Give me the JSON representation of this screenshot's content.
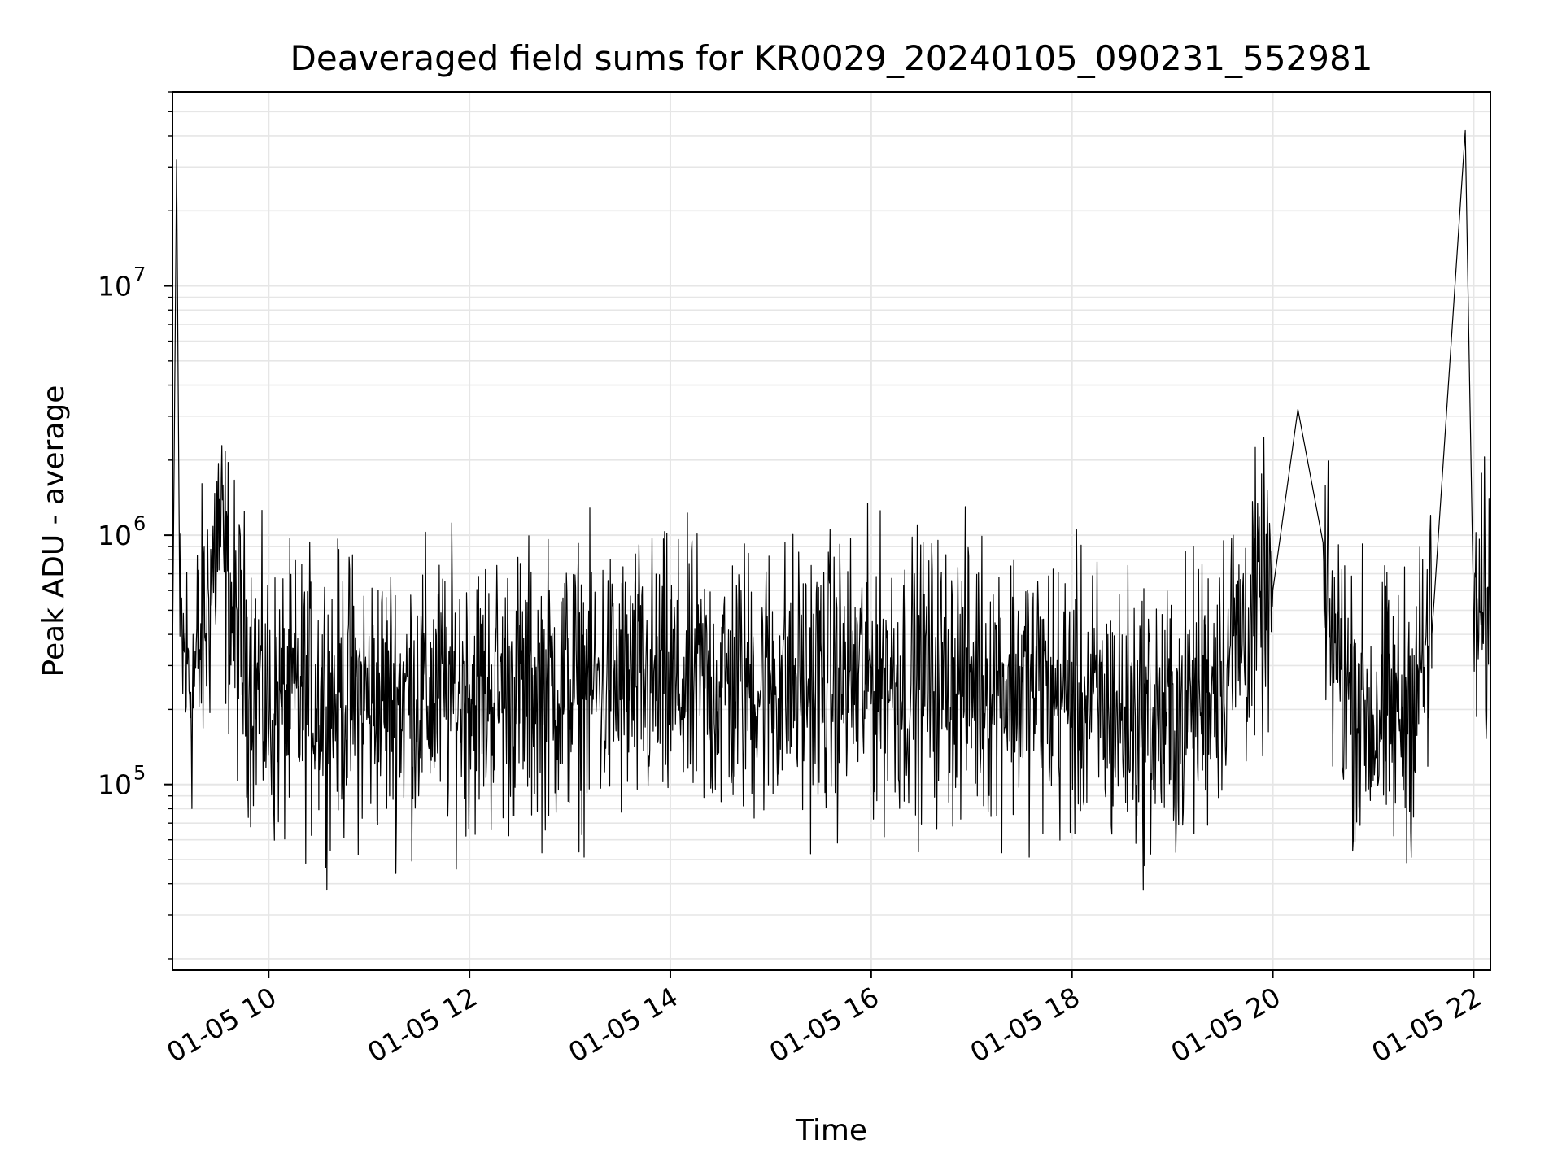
{
  "chart_data": {
    "type": "line",
    "title": "Deaveraged field sums for KR0029_20240105_090231_552981",
    "xlabel": "Time",
    "ylabel": "Peak ADU - average",
    "yscale": "log",
    "ylim": [
      18000,
      60000000
    ],
    "xlim": [
      "2024-01-05 09:02:31",
      "2024-01-05 22:10:00"
    ],
    "grid": true,
    "x_tick_labels": [
      "01-05 10",
      "01-05 12",
      "01-05 14",
      "01-05 16",
      "01-05 18",
      "01-05 20",
      "01-05 22"
    ],
    "y_tick_labels": [
      {
        "base": "10",
        "exp": "5"
      },
      {
        "base": "10",
        "exp": "6"
      },
      {
        "base": "10",
        "exp": "7"
      }
    ],
    "line_color": "#000000",
    "series": [
      {
        "name": "",
        "points": [
          {
            "t": "2024-01-05 09:02:31",
            "y": 300000
          },
          {
            "t": "2024-01-05 09:05:00",
            "y": 32000000
          },
          {
            "t": "2024-01-05 09:07:00",
            "y": 350000
          },
          {
            "t": "2024-01-05 09:15:00",
            "y": 250000
          },
          {
            "t": "2024-01-05 09:25:00",
            "y": 600000
          },
          {
            "t": "2024-01-05 09:30:00",
            "y": 1100000
          },
          {
            "t": "2024-01-05 09:40:00",
            "y": 400000
          },
          {
            "t": "2024-01-05 10:00:00",
            "y": 200000
          },
          {
            "t": "2024-01-05 10:30:00",
            "y": 230000
          },
          {
            "t": "2024-01-05 11:00:00",
            "y": 220000
          },
          {
            "t": "2024-01-05 11:30:00",
            "y": 230000
          },
          {
            "t": "2024-01-05 12:00:00",
            "y": 240000
          },
          {
            "t": "2024-01-05 12:30:00",
            "y": 240000
          },
          {
            "t": "2024-01-05 13:00:00",
            "y": 250000
          },
          {
            "t": "2024-01-05 13:30:00",
            "y": 250000
          },
          {
            "t": "2024-01-05 14:00:00",
            "y": 250000
          },
          {
            "t": "2024-01-05 14:30:00",
            "y": 250000
          },
          {
            "t": "2024-01-05 15:00:00",
            "y": 260000
          },
          {
            "t": "2024-01-05 15:30:00",
            "y": 260000
          },
          {
            "t": "2024-01-05 16:00:00",
            "y": 270000
          },
          {
            "t": "2024-01-05 16:30:00",
            "y": 270000
          },
          {
            "t": "2024-01-05 17:00:00",
            "y": 270000
          },
          {
            "t": "2024-01-05 17:30:00",
            "y": 260000
          },
          {
            "t": "2024-01-05 18:00:00",
            "y": 220000
          },
          {
            "t": "2024-01-05 18:30:00",
            "y": 190000
          },
          {
            "t": "2024-01-05 19:00:00",
            "y": 180000
          },
          {
            "t": "2024-01-05 19:20:00",
            "y": 250000
          },
          {
            "t": "2024-01-05 19:40:00",
            "y": 400000
          },
          {
            "t": "2024-01-05 20:00:00",
            "y": 600000
          },
          {
            "t": "2024-01-05 20:15:00",
            "y": 3200000
          },
          {
            "t": "2024-01-05 20:30:00",
            "y": 500000
          },
          {
            "t": "2024-01-05 20:45:00",
            "y": 250000
          },
          {
            "t": "2024-01-05 21:00:00",
            "y": 180000
          },
          {
            "t": "2024-01-05 21:20:00",
            "y": 190000
          },
          {
            "t": "2024-01-05 21:35:00",
            "y": 400000
          },
          {
            "t": "2024-01-05 21:55:00",
            "y": 42000000
          },
          {
            "t": "2024-01-05 22:00:00",
            "y": 450000
          },
          {
            "t": "2024-01-05 22:10:00",
            "y": 470000
          }
        ]
      }
    ]
  }
}
